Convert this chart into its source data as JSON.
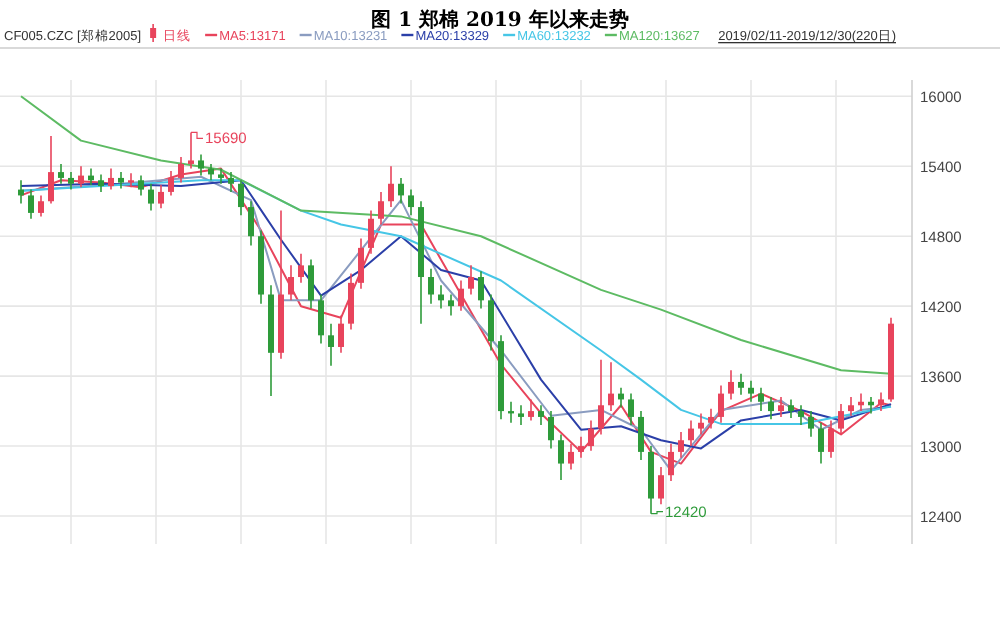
{
  "chart_data": {
    "type": "candlestick",
    "title": "图 1 郑棉 2019 年以来走势",
    "subtitle": "CF005.CZC [郑棉2005]",
    "legend": "top",
    "grid": true,
    "ylim": [
      12160,
      16140
    ],
    "yticks": [
      12400,
      13000,
      13600,
      14200,
      14800,
      15400,
      16000
    ],
    "categories": [
      null,
      null,
      null,
      null,
      null,
      null,
      null,
      null,
      null,
      null,
      null,
      null,
      null,
      null,
      null,
      null,
      null,
      null,
      null,
      null,
      null,
      null,
      null,
      null,
      null,
      null,
      null,
      null,
      null,
      null,
      null,
      null,
      null,
      null,
      null,
      null,
      null,
      null,
      null,
      null,
      null,
      null,
      null,
      null,
      null,
      null,
      null,
      null,
      null,
      null,
      null,
      null,
      null,
      null,
      null,
      null,
      null,
      null,
      null,
      null,
      null,
      null,
      null,
      null,
      null,
      null,
      null,
      null,
      null,
      null,
      null,
      null,
      null,
      null,
      null,
      null,
      null,
      null,
      null,
      null,
      null,
      null,
      null,
      null,
      null,
      null,
      null,
      null
    ],
    "annotations": [
      "2019/02/11-2019/12/30(220日)",
      "15690",
      "12420"
    ],
    "series": [
      {
        "name": "MA5:13171",
        "type": "line",
        "color": "#e8445c",
        "values": [
          15150,
          null,
          null,
          null,
          15280,
          null,
          null,
          null,
          15260,
          null,
          null,
          null,
          15220,
          null,
          null,
          null,
          15330,
          null,
          null,
          null,
          15380,
          null,
          null,
          null,
          14850,
          null,
          null,
          null,
          14200,
          null,
          null,
          null,
          14100,
          null,
          null,
          null,
          14900,
          null,
          null,
          null,
          14900,
          null,
          null,
          null,
          14300,
          null,
          null,
          null,
          13700,
          null,
          null,
          null,
          13280,
          null,
          null,
          null,
          12950,
          null,
          null,
          null,
          13350,
          null,
          null,
          12950,
          null,
          null,
          12850,
          null,
          null,
          null,
          13300,
          null,
          null,
          null,
          13450,
          null,
          null,
          null,
          13300,
          null,
          null,
          null,
          13100,
          null,
          null,
          null,
          13370,
          13350
        ]
      },
      {
        "name": "MA10:13231",
        "type": "line",
        "color": "#8a9cc0",
        "values": [
          15190,
          null,
          null,
          null,
          null,
          null,
          null,
          null,
          null,
          null,
          15250,
          null,
          null,
          null,
          null,
          null,
          null,
          null,
          15310,
          null,
          null,
          null,
          null,
          15110,
          null,
          null,
          14250,
          null,
          null,
          null,
          14250,
          null,
          null,
          null,
          14680,
          null,
          null,
          null,
          15110,
          null,
          null,
          null,
          14420,
          null,
          null,
          null,
          null,
          null,
          13820,
          null,
          null,
          null,
          null,
          13260,
          null,
          null,
          null,
          null,
          13310,
          null,
          null,
          null,
          13140,
          null,
          null,
          12790,
          null,
          null,
          null,
          null,
          13310,
          null,
          null,
          null,
          null,
          null,
          13390,
          null,
          null,
          null,
          13140,
          null,
          null,
          null,
          13310,
          null,
          null,
          13340
        ]
      },
      {
        "name": "MA20:13329",
        "type": "line",
        "color": "#2b3fa8",
        "values": [
          15230,
          null,
          null,
          null,
          null,
          null,
          null,
          null,
          15250,
          null,
          null,
          null,
          null,
          null,
          null,
          null,
          15230,
          null,
          null,
          null,
          null,
          null,
          15280,
          null,
          null,
          null,
          14770,
          null,
          null,
          null,
          14290,
          null,
          null,
          null,
          14510,
          null,
          null,
          null,
          14800,
          null,
          null,
          null,
          14510,
          null,
          null,
          null,
          14420,
          null,
          null,
          null,
          null,
          null,
          13570,
          null,
          null,
          null,
          13140,
          null,
          null,
          null,
          13170,
          null,
          null,
          null,
          13050,
          null,
          null,
          null,
          12980,
          null,
          null,
          null,
          13220,
          null,
          null,
          null,
          null,
          null,
          13310,
          null,
          null,
          null,
          13220,
          null,
          null,
          null,
          null,
          13360
        ]
      },
      {
        "name": "MA60:13232",
        "type": "line",
        "color": "#46c6e6",
        "values": [
          15190,
          null,
          null,
          null,
          null,
          null,
          null,
          null,
          15230,
          null,
          null,
          null,
          null,
          null,
          null,
          null,
          null,
          null,
          15280,
          null,
          null,
          null,
          15280,
          null,
          null,
          null,
          null,
          null,
          15020,
          null,
          null,
          null,
          14900,
          null,
          null,
          null,
          null,
          null,
          14800,
          null,
          null,
          null,
          null,
          null,
          null,
          null,
          null,
          null,
          14420,
          null,
          null,
          null,
          null,
          null,
          null,
          null,
          null,
          null,
          13820,
          null,
          null,
          null,
          13570,
          null,
          null,
          null,
          13310,
          null,
          null,
          null,
          13190,
          null,
          null,
          null,
          null,
          null,
          null,
          null,
          13190,
          null,
          null,
          null,
          null,
          null,
          null,
          null,
          null,
          13340
        ]
      },
      {
        "name": "MA120:13627",
        "type": "line",
        "color": "#5dbb63",
        "values": [
          16000,
          null,
          null,
          null,
          null,
          null,
          15620,
          null,
          null,
          null,
          null,
          null,
          null,
          null,
          15450,
          null,
          null,
          null,
          null,
          null,
          15370,
          null,
          null,
          null,
          null,
          null,
          null,
          null,
          15020,
          null,
          null,
          null,
          null,
          null,
          null,
          null,
          null,
          null,
          14970,
          null,
          null,
          null,
          null,
          null,
          null,
          null,
          14800,
          null,
          null,
          null,
          null,
          null,
          null,
          null,
          null,
          null,
          null,
          null,
          14340,
          null,
          null,
          null,
          null,
          null,
          14170,
          null,
          null,
          null,
          null,
          null,
          null,
          null,
          13910,
          null,
          null,
          null,
          null,
          null,
          null,
          null,
          null,
          null,
          13650,
          null,
          null,
          null,
          null,
          13620
        ]
      },
      {
        "name": "日线",
        "type": "candlestick",
        "color": "#e8445c",
        "colors": [
          "#2e9b3a",
          "#2e9b3a",
          "#e8445c",
          "#e8445c",
          "#2e9b3a",
          "#2e9b3a",
          "#e8445c",
          "#2e9b3a",
          "#2e9b3a",
          "#e8445c",
          "#2e9b3a",
          "#e8445c",
          "#2e9b3a",
          "#2e9b3a",
          "#e8445c",
          "#e8445c",
          "#e8445c",
          "#e8445c",
          "#2e9b3a",
          "#2e9b3a",
          "#2e9b3a",
          "#2e9b3a",
          "#2e9b3a",
          "#2e9b3a",
          "#2e9b3a",
          "#2e9b3a",
          "#e8445c",
          "#e8445c",
          "#e8445c",
          "#2e9b3a",
          "#2e9b3a",
          "#2e9b3a",
          "#e8445c",
          "#e8445c",
          "#e8445c",
          "#e8445c",
          "#e8445c",
          "#e8445c",
          "#2e9b3a",
          "#2e9b3a",
          "#2e9b3a",
          "#2e9b3a",
          "#2e9b3a",
          "#2e9b3a",
          "#e8445c",
          "#e8445c",
          "#2e9b3a",
          "#2e9b3a",
          "#2e9b3a",
          "#2e9b3a",
          "#2e9b3a",
          "#e8445c",
          "#2e9b3a",
          "#2e9b3a",
          "#2e9b3a",
          "#e8445c",
          "#e8445c",
          "#e8445c",
          "#e8445c",
          "#e8445c",
          "#2e9b3a",
          "#2e9b3a",
          "#2e9b3a",
          "#2e9b3a",
          "#e8445c",
          "#e8445c",
          "#e8445c",
          "#e8445c",
          "#e8445c",
          "#e8445c",
          "#e8445c",
          "#e8445c",
          "#2e9b3a",
          "#2e9b3a",
          "#2e9b3a",
          "#2e9b3a",
          "#e8445c",
          "#2e9b3a",
          "#2e9b3a",
          "#2e9b3a",
          "#2e9b3a",
          "#e8445c",
          "#e8445c",
          "#e8445c",
          "#e8445c",
          "#2e9b3a",
          "#e8445c",
          "#e8445c"
        ],
        "ohlc": [
          [
            15200,
            15280,
            15080,
            15150
          ],
          [
            15150,
            15200,
            14950,
            15000
          ],
          [
            15000,
            15150,
            14970,
            15100
          ],
          [
            15100,
            15660,
            15080,
            15350
          ],
          [
            15350,
            15420,
            15250,
            15300
          ],
          [
            15300,
            15350,
            15200,
            15250
          ],
          [
            15250,
            15400,
            15220,
            15320
          ],
          [
            15320,
            15380,
            15240,
            15280
          ],
          [
            15280,
            15330,
            15180,
            15230
          ],
          [
            15230,
            15380,
            15200,
            15300
          ],
          [
            15300,
            15350,
            15210,
            15260
          ],
          [
            15260,
            15340,
            15220,
            15280
          ],
          [
            15280,
            15320,
            15150,
            15200
          ],
          [
            15200,
            15250,
            15020,
            15080
          ],
          [
            15080,
            15240,
            15040,
            15180
          ],
          [
            15180,
            15360,
            15150,
            15300
          ],
          [
            15300,
            15480,
            15260,
            15420
          ],
          [
            15420,
            15690,
            15380,
            15450
          ],
          [
            15450,
            15500,
            15320,
            15380
          ],
          [
            15380,
            15420,
            15280,
            15330
          ],
          [
            15330,
            15380,
            15250,
            15300
          ],
          [
            15300,
            15350,
            15180,
            15250
          ],
          [
            15250,
            15280,
            14980,
            15050
          ],
          [
            15050,
            15100,
            14720,
            14800
          ],
          [
            14800,
            14850,
            14220,
            14300
          ],
          [
            14300,
            14380,
            13430,
            13800
          ],
          [
            13800,
            15020,
            13750,
            14300
          ],
          [
            14300,
            14550,
            14250,
            14450
          ],
          [
            14450,
            14650,
            14400,
            14550
          ],
          [
            14550,
            14600,
            14180,
            14250
          ],
          [
            14250,
            14300,
            13880,
            13950
          ],
          [
            13950,
            14050,
            13690,
            13850
          ],
          [
            13850,
            14120,
            13800,
            14050
          ],
          [
            14050,
            14480,
            14000,
            14400
          ],
          [
            14400,
            14780,
            14350,
            14700
          ],
          [
            14700,
            15020,
            14650,
            14950
          ],
          [
            14950,
            15180,
            14900,
            15100
          ],
          [
            15100,
            15400,
            15050,
            15250
          ],
          [
            15250,
            15300,
            15080,
            15150
          ],
          [
            15150,
            15200,
            14980,
            15050
          ],
          [
            15050,
            15100,
            14050,
            14450
          ],
          [
            14450,
            14520,
            14220,
            14300
          ],
          [
            14300,
            14380,
            14180,
            14250
          ],
          [
            14250,
            14300,
            14120,
            14200
          ],
          [
            14200,
            14420,
            14160,
            14350
          ],
          [
            14350,
            14550,
            14300,
            14450
          ],
          [
            14450,
            14500,
            14180,
            14250
          ],
          [
            14250,
            14300,
            13820,
            13900
          ],
          [
            13900,
            13950,
            13230,
            13300
          ],
          [
            13300,
            13380,
            13200,
            13280
          ],
          [
            13280,
            13350,
            13180,
            13250
          ],
          [
            13250,
            13400,
            13220,
            13300
          ],
          [
            13300,
            13350,
            13180,
            13250
          ],
          [
            13250,
            13300,
            12980,
            13050
          ],
          [
            13050,
            13100,
            12710,
            12850
          ],
          [
            12850,
            13020,
            12800,
            12950
          ],
          [
            12950,
            13080,
            12900,
            13000
          ],
          [
            13000,
            13220,
            12960,
            13150
          ],
          [
            13150,
            13740,
            13100,
            13350
          ],
          [
            13350,
            13720,
            13300,
            13450
          ],
          [
            13450,
            13500,
            13330,
            13400
          ],
          [
            13400,
            13450,
            13180,
            13250
          ],
          [
            13250,
            13300,
            12880,
            12950
          ],
          [
            12950,
            13000,
            12420,
            12550
          ],
          [
            12550,
            12820,
            12500,
            12750
          ],
          [
            12750,
            13020,
            12700,
            12950
          ],
          [
            12950,
            13120,
            12900,
            13050
          ],
          [
            13050,
            13220,
            13000,
            13150
          ],
          [
            13150,
            13280,
            13100,
            13200
          ],
          [
            13200,
            13320,
            13150,
            13250
          ],
          [
            13250,
            13520,
            13200,
            13450
          ],
          [
            13450,
            13650,
            13400,
            13550
          ],
          [
            13550,
            13620,
            13440,
            13500
          ],
          [
            13500,
            13560,
            13380,
            13450
          ],
          [
            13450,
            13500,
            13300,
            13380
          ],
          [
            13380,
            13420,
            13230,
            13300
          ],
          [
            13300,
            13420,
            13250,
            13350
          ],
          [
            13350,
            13400,
            13240,
            13300
          ],
          [
            13300,
            13350,
            13180,
            13250
          ],
          [
            13250,
            13300,
            13080,
            13150
          ],
          [
            13150,
            13200,
            12850,
            12950
          ],
          [
            12950,
            13220,
            12900,
            13150
          ],
          [
            13150,
            13360,
            13100,
            13300
          ],
          [
            13300,
            13420,
            13260,
            13350
          ],
          [
            13350,
            13450,
            13300,
            13380
          ],
          [
            13380,
            13420,
            13280,
            13350
          ],
          [
            13350,
            13460,
            13300,
            13400
          ],
          [
            13400,
            14100,
            13380,
            14050
          ]
        ]
      }
    ]
  }
}
